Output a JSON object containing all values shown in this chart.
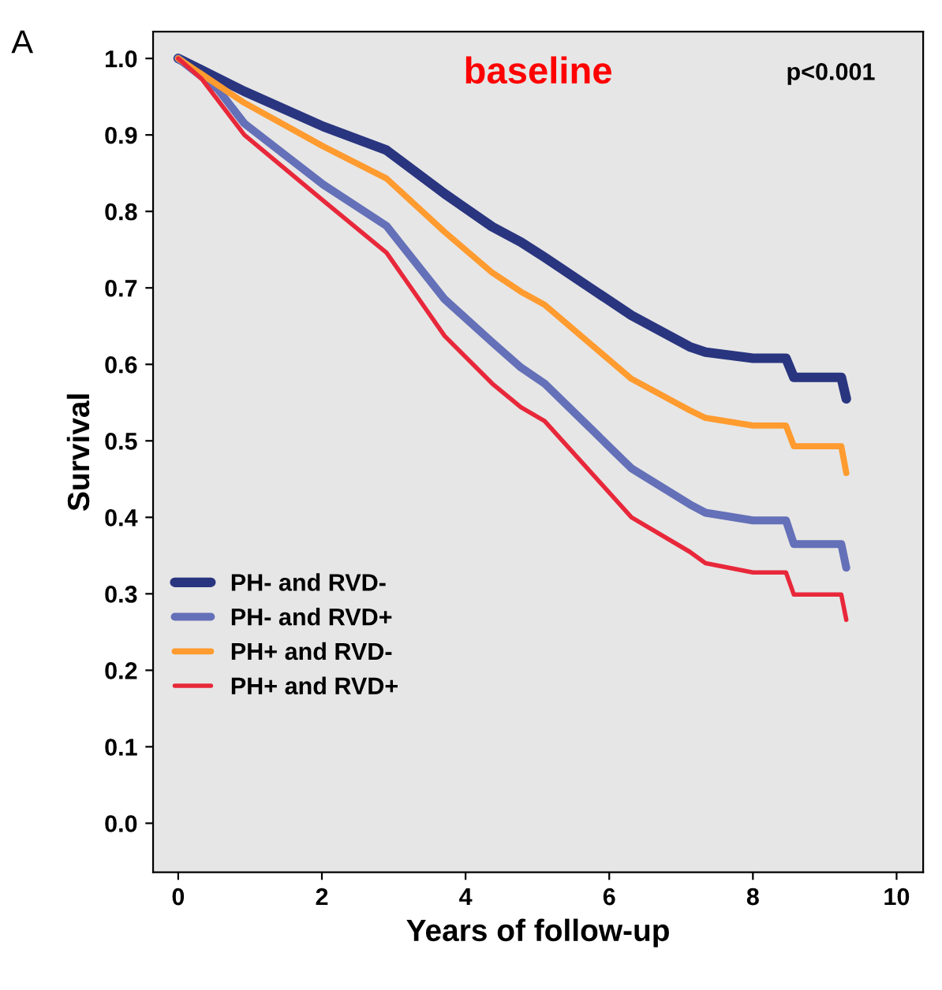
{
  "chart_data": {
    "type": "line",
    "title": "baseline",
    "xlabel": "Years of follow-up",
    "ylabel": "Survival",
    "annotations": [
      "A",
      "p<0.001"
    ],
    "series": [
      {
        "name": "PH- and RVD-",
        "color": "#2a3580",
        "x": [
          0,
          0.92,
          2.02,
          2.9,
          3.71,
          4.37,
          4.77,
          5.1,
          6.31,
          7.12,
          7.34,
          8.0,
          8.46,
          8.57,
          9.23,
          9.3
        ],
        "values": [
          1.0,
          0.957,
          0.911,
          0.88,
          0.823,
          0.78,
          0.76,
          0.74,
          0.664,
          0.623,
          0.616,
          0.608,
          0.608,
          0.583,
          0.583,
          0.555
        ]
      },
      {
        "name": "PH- and RVD+",
        "color": "#6470b8",
        "x": [
          0,
          0.55,
          0.92,
          2.02,
          2.9,
          3.71,
          4.37,
          4.77,
          5.1,
          6.31,
          7.12,
          7.34,
          8.0,
          8.46,
          8.57,
          9.23,
          9.3
        ],
        "values": [
          1.0,
          0.96,
          0.915,
          0.835,
          0.781,
          0.685,
          0.629,
          0.596,
          0.575,
          0.464,
          0.417,
          0.406,
          0.396,
          0.396,
          0.365,
          0.365,
          0.334
        ]
      },
      {
        "name": "PH+ and RVD-",
        "color": "#ff9b2f",
        "x": [
          0,
          0.92,
          2.02,
          2.9,
          3.71,
          4.37,
          4.77,
          5.1,
          6.31,
          7.12,
          7.34,
          8.0,
          8.46,
          8.57,
          9.23,
          9.3
        ],
        "values": [
          1.0,
          0.942,
          0.885,
          0.843,
          0.773,
          0.72,
          0.695,
          0.678,
          0.581,
          0.54,
          0.53,
          0.52,
          0.52,
          0.493,
          0.493,
          0.458
        ]
      },
      {
        "name": "PH+ and RVD+",
        "color": "#e8283a",
        "x": [
          0,
          0.33,
          0.92,
          2.02,
          2.9,
          3.71,
          4.37,
          4.77,
          5.1,
          6.31,
          7.12,
          7.34,
          8.0,
          8.46,
          8.57,
          9.23,
          9.3
        ],
        "values": [
          1.0,
          0.973,
          0.9,
          0.814,
          0.746,
          0.637,
          0.575,
          0.544,
          0.526,
          0.4,
          0.355,
          0.34,
          0.328,
          0.328,
          0.299,
          0.299,
          0.266
        ]
      }
    ],
    "xlim": [
      -0.35,
      10.37
    ],
    "ylim": [
      -0.064,
      1.035
    ],
    "xticks": [
      0,
      2,
      4,
      6,
      8,
      10
    ],
    "yticks": [
      {
        "value": 0,
        "label": "0.0"
      },
      0.1,
      0.2,
      0.3,
      0.4,
      0.5,
      0.6,
      0.7,
      0.8,
      0.9,
      {
        "value": 1,
        "label": "1.0"
      }
    ],
    "legend": "bottom left",
    "grid": false
  }
}
